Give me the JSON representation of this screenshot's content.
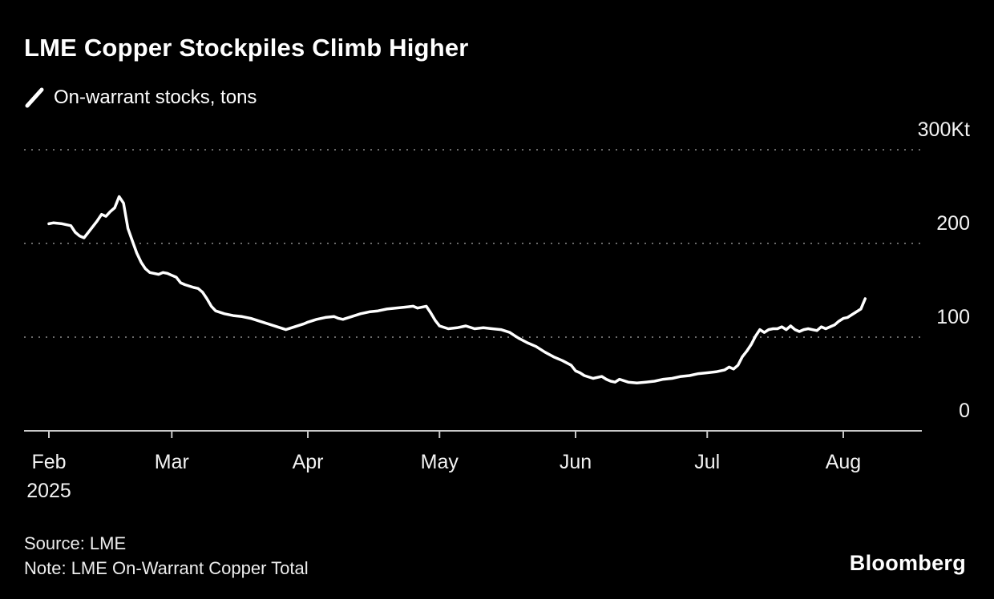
{
  "header": {
    "title": "LME Copper Stockpiles Climb Higher",
    "legend_label": "On-warrant stocks, tons"
  },
  "footer": {
    "source": "Source: LME",
    "note": "Note: LME On-Warrant Copper Total",
    "brand": "Bloomberg"
  },
  "chart_data": {
    "type": "line",
    "title": "LME Copper Stockpiles Climb Higher",
    "subtitle": "On-warrant stocks, tons",
    "unit": "Kt",
    "background_color": "#000000",
    "line_color": "#ffffff",
    "grid_color": "#6a6a6a",
    "legend_position": "top-left",
    "x_axis": {
      "year_label": "2025",
      "domain_days": [
        -6,
        199
      ],
      "ticks": [
        {
          "label": "Feb",
          "day": 0
        },
        {
          "label": "Mar",
          "day": 28
        },
        {
          "label": "Apr",
          "day": 59
        },
        {
          "label": "May",
          "day": 89
        },
        {
          "label": "Jun",
          "day": 120
        },
        {
          "label": "Jul",
          "day": 150
        },
        {
          "label": "Aug",
          "day": 181
        }
      ]
    },
    "y_axis": {
      "range": [
        0,
        330
      ],
      "grid": true,
      "labels_side": "right",
      "ticks": [
        {
          "label": "0",
          "value": 0
        },
        {
          "label": "100",
          "value": 100
        },
        {
          "label": "200",
          "value": 200
        },
        {
          "label": "300Kt",
          "value": 300
        }
      ]
    },
    "series": [
      {
        "name": "On-warrant stocks, tons",
        "unit": "Kt",
        "points": [
          [
            0,
            221
          ],
          [
            1,
            222
          ],
          [
            3,
            221
          ],
          [
            5,
            219
          ],
          [
            6,
            212
          ],
          [
            7,
            208
          ],
          [
            8,
            206
          ],
          [
            9,
            212
          ],
          [
            11,
            224
          ],
          [
            12,
            231
          ],
          [
            13,
            229
          ],
          [
            14,
            234
          ],
          [
            15,
            238
          ],
          [
            16,
            250
          ],
          [
            17,
            243
          ],
          [
            18,
            216
          ],
          [
            19,
            203
          ],
          [
            20,
            190
          ],
          [
            21,
            180
          ],
          [
            22,
            173
          ],
          [
            23,
            169
          ],
          [
            25,
            167
          ],
          [
            26,
            169
          ],
          [
            27,
            168
          ],
          [
            28,
            166
          ],
          [
            29,
            164
          ],
          [
            30,
            158
          ],
          [
            31,
            156
          ],
          [
            33,
            153
          ],
          [
            34,
            152
          ],
          [
            35,
            148
          ],
          [
            36,
            141
          ],
          [
            37,
            133
          ],
          [
            38,
            128
          ],
          [
            40,
            125
          ],
          [
            42,
            123
          ],
          [
            44,
            122
          ],
          [
            46,
            120
          ],
          [
            48,
            117
          ],
          [
            50,
            114
          ],
          [
            52,
            111
          ],
          [
            54,
            108
          ],
          [
            56,
            111
          ],
          [
            58,
            114
          ],
          [
            59,
            116
          ],
          [
            61,
            119
          ],
          [
            63,
            121
          ],
          [
            65,
            122
          ],
          [
            66,
            120
          ],
          [
            67,
            119
          ],
          [
            69,
            122
          ],
          [
            71,
            125
          ],
          [
            73,
            127
          ],
          [
            75,
            128
          ],
          [
            77,
            130
          ],
          [
            79,
            131
          ],
          [
            81,
            132
          ],
          [
            83,
            133
          ],
          [
            84,
            131
          ],
          [
            86,
            133
          ],
          [
            87,
            126
          ],
          [
            88,
            118
          ],
          [
            89,
            112
          ],
          [
            91,
            109
          ],
          [
            93,
            110
          ],
          [
            95,
            112
          ],
          [
            97,
            109
          ],
          [
            99,
            110
          ],
          [
            101,
            109
          ],
          [
            103,
            108
          ],
          [
            105,
            105
          ],
          [
            106,
            102
          ],
          [
            107,
            99
          ],
          [
            109,
            94
          ],
          [
            111,
            90
          ],
          [
            113,
            84
          ],
          [
            115,
            79
          ],
          [
            117,
            75
          ],
          [
            119,
            70
          ],
          [
            120,
            64
          ],
          [
            121,
            62
          ],
          [
            122,
            59
          ],
          [
            124,
            56
          ],
          [
            126,
            58
          ],
          [
            127,
            55
          ],
          [
            128,
            53
          ],
          [
            129,
            52
          ],
          [
            130,
            55
          ],
          [
            132,
            52
          ],
          [
            134,
            51
          ],
          [
            136,
            52
          ],
          [
            138,
            53
          ],
          [
            140,
            55
          ],
          [
            142,
            56
          ],
          [
            144,
            58
          ],
          [
            146,
            59
          ],
          [
            148,
            61
          ],
          [
            150,
            62
          ],
          [
            152,
            63
          ],
          [
            154,
            65
          ],
          [
            155,
            68
          ],
          [
            156,
            66
          ],
          [
            157,
            70
          ],
          [
            158,
            79
          ],
          [
            159,
            85
          ],
          [
            160,
            92
          ],
          [
            161,
            101
          ],
          [
            162,
            108
          ],
          [
            163,
            105
          ],
          [
            164,
            108
          ],
          [
            165,
            109
          ],
          [
            166,
            109
          ],
          [
            167,
            111
          ],
          [
            168,
            108
          ],
          [
            169,
            112
          ],
          [
            170,
            108
          ],
          [
            171,
            106
          ],
          [
            172,
            108
          ],
          [
            173,
            109
          ],
          [
            175,
            107
          ],
          [
            176,
            111
          ],
          [
            177,
            109
          ],
          [
            178,
            111
          ],
          [
            179,
            113
          ],
          [
            180,
            117
          ],
          [
            181,
            120
          ],
          [
            182,
            121
          ],
          [
            183,
            124
          ],
          [
            184,
            127
          ],
          [
            185,
            130
          ],
          [
            186,
            141
          ]
        ]
      }
    ]
  }
}
